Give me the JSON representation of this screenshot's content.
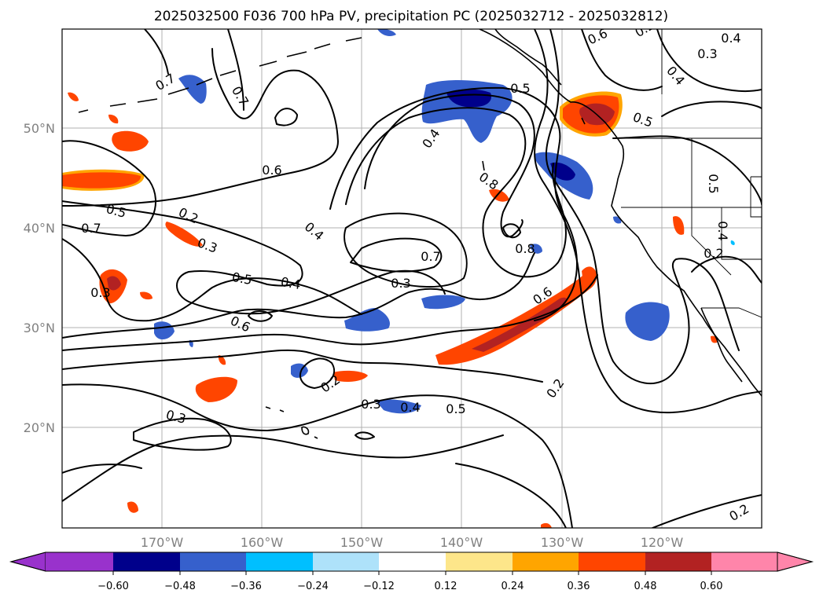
{
  "title": "2025032500 F036 700 hPa PV, precipitation PC (2025032712 - 2025032812)",
  "lat_labels": [
    "50°N",
    "40°N",
    "30°N",
    "20°N"
  ],
  "lon_labels": [
    "170°W",
    "160°W",
    "150°W",
    "140°W",
    "130°W",
    "120°W"
  ],
  "colorbar": {
    "ticks": [
      "−0.60",
      "−0.48",
      "−0.36",
      "−0.24",
      "−0.12",
      "0.12",
      "0.24",
      "0.36",
      "0.48",
      "0.60"
    ],
    "colors": [
      "#9932cc",
      "#00008b",
      "#3660cc",
      "#00bfff",
      "#aee2fa",
      "#ffffff",
      "#fde68a",
      "#ffa500",
      "#ff4500",
      "#b22222",
      "#ff85aa"
    ]
  },
  "contour_labels": [
    "0.7",
    "0.7",
    "0.6",
    "0.4",
    "0.4",
    "0.5",
    "0.5",
    "0.3",
    "0.5",
    "0.6",
    "0.4",
    "0.4",
    "0.8",
    "0.2",
    "0.3",
    "0.5",
    "0.7",
    "0.4",
    "0.8",
    "0.6",
    "0.6",
    "0.5",
    "0.4",
    "0.3",
    "0.7",
    "0.3",
    "0.2",
    "0.3",
    "0.4",
    "0.5",
    "0.2",
    "0.3",
    "0.2",
    "0.2",
    "0.2"
  ],
  "colors": {
    "map_frame": "#000000",
    "grid": "#b0b0b0",
    "tick_label": "#808080"
  }
}
